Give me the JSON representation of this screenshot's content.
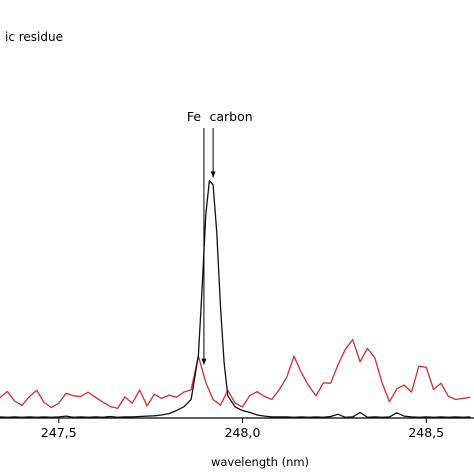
{
  "chart_data": {
    "type": "line",
    "title": "",
    "legend_fragment": "ic residue",
    "xlabel": "wavelength (nm)",
    "ylabel": "",
    "xlim": [
      247.34,
      248.63
    ],
    "ylim": [
      0,
      100
    ],
    "x_ticks": [
      247.5,
      248.0,
      248.5
    ],
    "x_tick_labels": [
      "247,5",
      "248,0",
      "248,5"
    ],
    "annotations": [
      {
        "text": "Fe",
        "x": 247.895,
        "arrow_to_y": 13.6
      },
      {
        "text": "carbon",
        "x": 247.92,
        "arrow_to_y": 64.2
      }
    ],
    "series": [
      {
        "color": "#d03030",
        "x": [
          247.34,
          247.36,
          247.38,
          247.4,
          247.42,
          247.44,
          247.46,
          247.48,
          247.5,
          247.52,
          247.54,
          247.56,
          247.58,
          247.6,
          247.62,
          247.64,
          247.66,
          247.68,
          247.7,
          247.72,
          247.74,
          247.76,
          247.78,
          247.8,
          247.82,
          247.84,
          247.86,
          247.88,
          247.9,
          247.92,
          247.94,
          247.96,
          247.98,
          248.0,
          248.02,
          248.04,
          248.06,
          248.08,
          248.1,
          248.12,
          248.14,
          248.16,
          248.18,
          248.2,
          248.22,
          248.24,
          248.26,
          248.28,
          248.3,
          248.32,
          248.34,
          248.36,
          248.38,
          248.4,
          248.42,
          248.44,
          248.46,
          248.48,
          248.5,
          248.52,
          248.54,
          248.56,
          248.58,
          248.6,
          248.62
        ],
        "values": [
          5.5,
          7.2,
          4.6,
          3.4,
          5.8,
          7.5,
          4.2,
          2.8,
          4.0,
          6.7,
          6.0,
          5.8,
          7.0,
          5.6,
          4.3,
          3.1,
          2.6,
          5.7,
          4.0,
          7.6,
          3.3,
          6.4,
          5.3,
          6.2,
          5.6,
          7.0,
          7.6,
          16.7,
          9.6,
          5.0,
          3.5,
          7.5,
          4.0,
          3.0,
          6.1,
          7.1,
          5.8,
          5.0,
          7.7,
          10.9,
          16.7,
          12.3,
          8.7,
          6.0,
          9.5,
          9.4,
          14.4,
          18.6,
          21.2,
          15.2,
          18.8,
          16.3,
          9.5,
          4.4,
          7.9,
          8.9,
          7.0,
          14.0,
          13.7,
          7.7,
          9.4,
          5.9,
          5.0,
          5.3,
          5.6
        ]
      },
      {
        "color": "#111111",
        "x": [
          247.34,
          247.36,
          247.38,
          247.4,
          247.42,
          247.44,
          247.46,
          247.48,
          247.5,
          247.52,
          247.54,
          247.56,
          247.58,
          247.6,
          247.62,
          247.64,
          247.66,
          247.68,
          247.7,
          247.72,
          247.74,
          247.76,
          247.78,
          247.8,
          247.82,
          247.84,
          247.86,
          247.88,
          247.89,
          247.9,
          247.91,
          247.92,
          247.93,
          247.94,
          247.95,
          247.96,
          247.98,
          248.0,
          248.02,
          248.04,
          248.06,
          248.08,
          248.1,
          248.12,
          248.14,
          248.16,
          248.18,
          248.2,
          248.22,
          248.24,
          248.26,
          248.28,
          248.3,
          248.32,
          248.34,
          248.36,
          248.38,
          248.4,
          248.42,
          248.44,
          248.46,
          248.48,
          248.5,
          248.52,
          248.54,
          248.56,
          248.58,
          248.6,
          248.62
        ],
        "values": [
          0.3,
          0.2,
          0.3,
          0.2,
          0.3,
          0.2,
          0.3,
          0.2,
          0.3,
          0.5,
          0.2,
          0.3,
          0.2,
          0.3,
          0.2,
          0.4,
          0.2,
          0.3,
          0.3,
          0.4,
          0.5,
          0.6,
          0.8,
          1.2,
          2.0,
          3.0,
          5.0,
          17.0,
          35.0,
          55.0,
          64.2,
          63.0,
          50.0,
          30.0,
          15.0,
          6.0,
          3.0,
          2.0,
          1.5,
          0.8,
          0.5,
          0.3,
          0.3,
          0.3,
          0.2,
          0.3,
          0.2,
          0.3,
          0.2,
          0.4,
          1.0,
          0.2,
          0.3,
          1.5,
          0.2,
          0.3,
          0.2,
          0.3,
          1.4,
          0.5,
          0.3,
          0.2,
          0.3,
          0.2,
          0.3,
          0.2,
          0.3,
          0.2,
          0.3
        ]
      }
    ]
  }
}
